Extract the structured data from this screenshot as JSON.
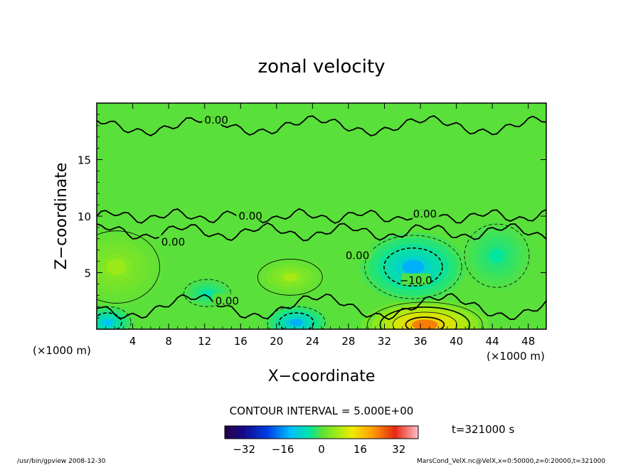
{
  "chart_data": {
    "type": "heatmap",
    "title": "zonal velocity",
    "xlabel": "X−coordinate",
    "ylabel": "Z−coordinate",
    "x_unit": "(×1000 m)",
    "y_unit": "(×1000 m)",
    "xlim": [
      0,
      50
    ],
    "ylim": [
      0,
      20
    ],
    "x_ticks": [
      4,
      8,
      12,
      16,
      20,
      24,
      28,
      32,
      36,
      40,
      44,
      48
    ],
    "x_tick_labels": [
      "4",
      "8",
      "12",
      "16",
      "20",
      "24",
      "28",
      "32",
      "36",
      "40",
      "44",
      "48"
    ],
    "y_ticks": [
      5,
      10,
      15
    ],
    "y_tick_labels": [
      "5",
      "10",
      "15"
    ],
    "contour_interval_text": "CONTOUR INTERVAL = 5.000E+00",
    "contour_labels": [
      {
        "text": "0.00",
        "x": 13.3,
        "z": 18.5
      },
      {
        "text": "0.00",
        "x": 17.1,
        "z": 10.0
      },
      {
        "text": "0.00",
        "x": 8.5,
        "z": 7.7
      },
      {
        "text": "0.00",
        "x": 14.5,
        "z": 2.5
      },
      {
        "text": "0.00",
        "x": 29.0,
        "z": 6.5
      },
      {
        "text": "0.00",
        "x": 36.5,
        "z": 10.2
      },
      {
        "text": "−10.0",
        "x": 35.5,
        "z": 4.3
      }
    ],
    "field_features": [
      {
        "kind": "jet",
        "sign": "positive",
        "x": 36.5,
        "z": 0.4,
        "peak": 24,
        "sx": 3.2,
        "sz": 1.0
      },
      {
        "kind": "jet",
        "sign": "negative",
        "x": 35.2,
        "z": 5.5,
        "peak": -14,
        "sx": 2.7,
        "sz": 1.4
      },
      {
        "kind": "jet",
        "sign": "negative",
        "x": 22.2,
        "z": 0.6,
        "peak": -14,
        "sx": 1.6,
        "sz": 0.7
      },
      {
        "kind": "jet",
        "sign": "negative",
        "x": 1.2,
        "z": 0.6,
        "peak": -12,
        "sx": 1.3,
        "sz": 0.7
      },
      {
        "kind": "jet",
        "sign": "positive",
        "x": 21.5,
        "z": 4.6,
        "peak": 7,
        "sx": 1.8,
        "sz": 0.8
      },
      {
        "kind": "jet",
        "sign": "positive",
        "x": 2.2,
        "z": 5.5,
        "peak": 6,
        "sx": 2.4,
        "sz": 1.6
      },
      {
        "kind": "jet",
        "sign": "negative",
        "x": 12.3,
        "z": 3.2,
        "peak": -6,
        "sx": 1.3,
        "sz": 0.6
      },
      {
        "kind": "jet",
        "sign": "negative",
        "x": 44.5,
        "z": 6.5,
        "peak": -5,
        "sx": 1.8,
        "sz": 1.4
      }
    ],
    "colorbar": {
      "vmin": -40,
      "vmax": 40,
      "tick_values": [
        -32,
        -16,
        0,
        16,
        32
      ],
      "tick_labels": [
        "−32",
        "−16",
        "0",
        "16",
        "32"
      ]
    },
    "time_label": "t=321000 s",
    "footer_left": "/usr/bin/gpview   2008-12-30",
    "footer_right": "MarsCond_VelX.nc@VelX,x=0:50000,z=0:20000,t=321000"
  }
}
